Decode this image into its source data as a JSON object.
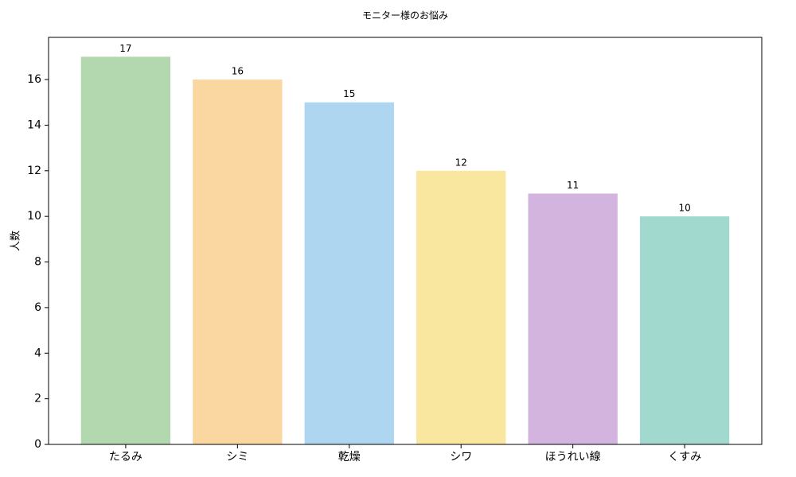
{
  "chart_data": {
    "type": "bar",
    "title": "モニター様のお悩み",
    "y_label": "人数",
    "categories": [
      "たるみ",
      "シミ",
      "乾燥",
      "シワ",
      "ほうれい線",
      "くすみ"
    ],
    "values": [
      17,
      16,
      15,
      12,
      11,
      10
    ],
    "colors": [
      "#b3d8b0",
      "#fad7a0",
      "#aed6f1",
      "#f9e79f",
      "#d2b4de",
      "#a2d9ce"
    ],
    "ylim": [
      0,
      17.85
    ],
    "yticks": [
      0,
      2,
      4,
      6,
      8,
      10,
      12,
      14,
      16
    ]
  }
}
